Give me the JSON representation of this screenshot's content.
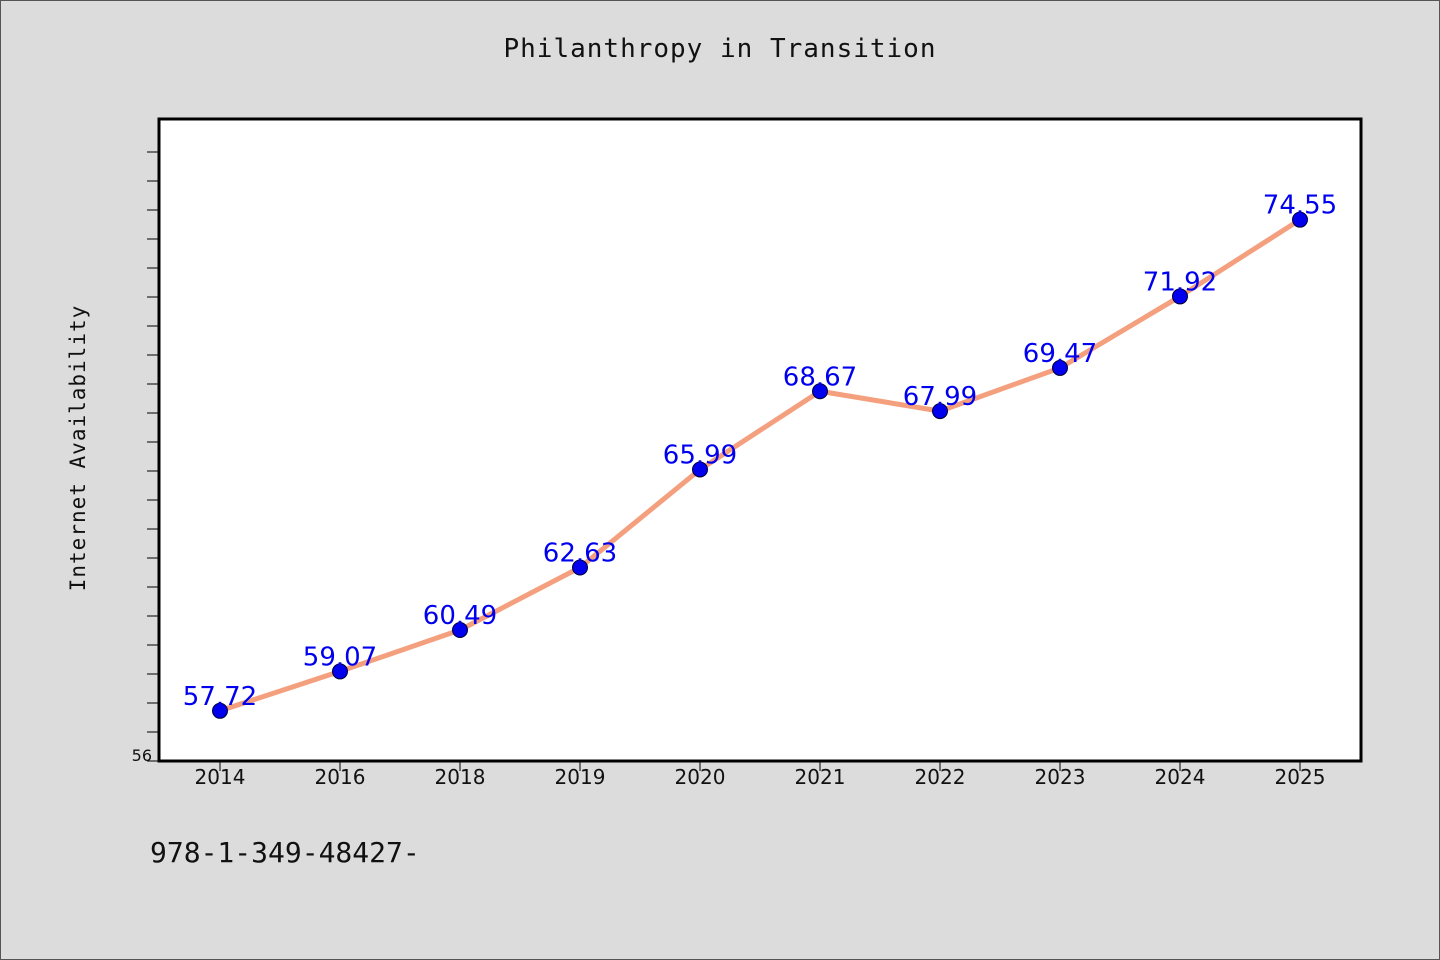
{
  "title": "Philanthropy in Transition",
  "footer_text": "978-1-349-48427-",
  "colors": {
    "line": "#f4a07e",
    "marker": "#0000ee",
    "label": "#0000ee",
    "background": "#dcdcdc",
    "plot_bg": "#ffffff"
  },
  "chart_data": {
    "type": "line",
    "title": "Philanthropy in Transition",
    "xlabel": "",
    "ylabel": "Internet Availability",
    "categories": [
      "2014",
      "2016",
      "2018",
      "2019",
      "2020",
      "2021",
      "2022",
      "2023",
      "2024",
      "2025"
    ],
    "series": [
      {
        "values": [
          57.72,
          59.07,
          60.49,
          62.63,
          65.99,
          68.67,
          67.99,
          69.47,
          71.92,
          74.55
        ]
      }
    ],
    "data_labels": [
      "57.72",
      "59.07",
      "60.49",
      "62.63",
      "65.99",
      "68.67",
      "67.99",
      "69.47",
      "71.92",
      "74.55"
    ],
    "ylim": [
      56,
      78
    ],
    "y_tick_labels": [
      "56"
    ],
    "grid": false,
    "legend": "none"
  }
}
